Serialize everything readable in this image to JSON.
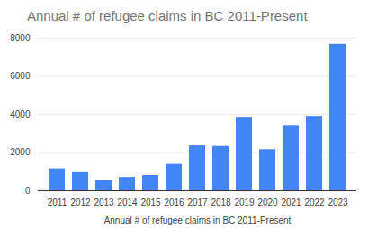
{
  "chart_data": {
    "type": "bar",
    "title": "Annual # of refugee claims in BC 2011-Present",
    "x_label": "Annual # of refugee claims in BC 2011-Present",
    "categories": [
      "2011",
      "2012",
      "2013",
      "2014",
      "2015",
      "2016",
      "2017",
      "2018",
      "2019",
      "2020",
      "2021",
      "2022",
      "2023"
    ],
    "values": [
      1150,
      950,
      550,
      700,
      800,
      1380,
      2350,
      2320,
      3850,
      2150,
      3420,
      3900,
      7680
    ],
    "color": "#4285f4",
    "ylim": [
      0,
      8000
    ],
    "yticks": [
      0,
      2000,
      4000,
      6000,
      8000
    ],
    "grid": true
  }
}
